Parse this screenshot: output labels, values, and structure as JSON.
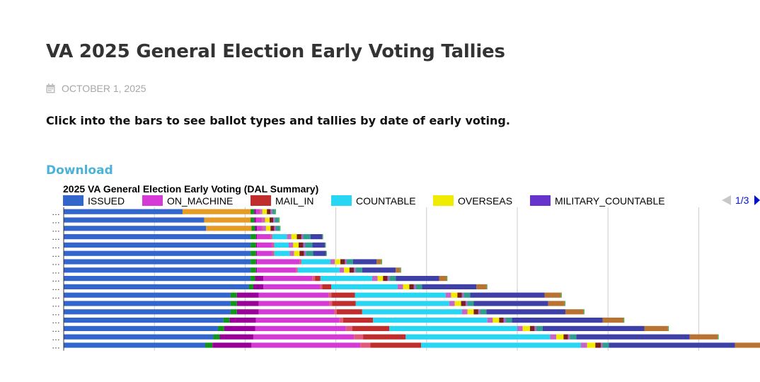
{
  "page": {
    "title": "VA 2025 General Election Early Voting Tallies",
    "date": "OCTOBER 1, 2025",
    "date_icon": "calendar-icon",
    "intro": "Click into the bars to see ballot types and tallies by date of early voting.",
    "download_label": "Download"
  },
  "pager": {
    "text": "1/3",
    "prev_icon": "triangle-left-icon",
    "next_icon": "triangle-right-icon"
  },
  "chart_data": {
    "type": "bar",
    "orientation": "horizontal",
    "stacked": true,
    "title": "2025 VA General Election Early Voting (DAL Summary)",
    "xlabel": "",
    "ylabel": "",
    "xlim": [
      0,
      3.9
    ],
    "x_gridlines": [
      0,
      0.5,
      1,
      1.5,
      2,
      2.5,
      3,
      3.5
    ],
    "grid": true,
    "legend_position": "top",
    "category_label": "…",
    "categories": [
      "…",
      "…",
      "…",
      "…",
      "…",
      "…",
      "…",
      "…",
      "…",
      "…",
      "…",
      "…",
      "…",
      "…",
      "…",
      "…",
      "…"
    ],
    "legend": [
      {
        "name": "ISSUED",
        "color": "#3366cc"
      },
      {
        "name": "ON_MACHINE",
        "color": "#d63ad6"
      },
      {
        "name": "MAIL_IN",
        "color": "#bf2d2d"
      },
      {
        "name": "COUNTABLE",
        "color": "#26d6f2"
      },
      {
        "name": "OVERSEAS",
        "color": "#f0ec00"
      },
      {
        "name": "MILITARY_COUNTABLE",
        "color": "#6633cc"
      }
    ],
    "series": [
      {
        "color": "#3366cc",
        "values": [
          0.655,
          0.775,
          0.785,
          1.03,
          1.03,
          1.03,
          1.03,
          1.03,
          1.03,
          1.02,
          0.92,
          0.92,
          0.92,
          0.88,
          0.85,
          0.825,
          0.78
        ]
      },
      {
        "color": "#e69b24",
        "values": [
          0.375,
          0.255,
          0.25,
          0,
          0,
          0,
          0,
          0,
          0,
          0,
          0,
          0,
          0,
          0,
          0,
          0,
          0
        ]
      },
      {
        "color": "#109618",
        "values": [
          0.02,
          0.02,
          0.02,
          0.03,
          0.03,
          0.03,
          0.03,
          0.03,
          0.025,
          0.025,
          0.035,
          0.035,
          0.035,
          0.035,
          0.035,
          0.035,
          0.04
        ]
      },
      {
        "color": "#990099",
        "values": [
          0.01,
          0.01,
          0.01,
          0.005,
          0.005,
          0.005,
          0.005,
          0.005,
          0.045,
          0.055,
          0.12,
          0.12,
          0.12,
          0.145,
          0.17,
          0.185,
          0.215
        ]
      },
      {
        "color": "#d63ad6",
        "values": [
          0.02,
          0.03,
          0.03,
          0.075,
          0.085,
          0.085,
          0.235,
          0.215,
          0.27,
          0.315,
          0.385,
          0.39,
          0.415,
          0.46,
          0.5,
          0.555,
          0.6
        ]
      },
      {
        "color": "#e05a7a",
        "values": [
          0.005,
          0.005,
          0.005,
          0.01,
          0.01,
          0.01,
          0.01,
          0.01,
          0.015,
          0.01,
          0.015,
          0.015,
          0.015,
          0.02,
          0.035,
          0.05,
          0.055
        ]
      },
      {
        "color": "#bf2d2d",
        "values": [
          0,
          0,
          0,
          0,
          0,
          0,
          0,
          0,
          0.03,
          0.05,
          0.13,
          0.13,
          0.14,
          0.165,
          0.205,
          0.235,
          0.28
        ]
      },
      {
        "color": "#26d6f2",
        "values": [
          0,
          0,
          0,
          0.08,
          0.08,
          0.085,
          0.16,
          0.23,
          0.285,
          0.365,
          0.5,
          0.515,
          0.55,
          0.63,
          0.705,
          0.795,
          0.88
        ]
      },
      {
        "color": "#c566c5",
        "values": [
          0.01,
          0.015,
          0.015,
          0.025,
          0.025,
          0.025,
          0.025,
          0.025,
          0.03,
          0.03,
          0.03,
          0.03,
          0.03,
          0.03,
          0.03,
          0.035,
          0.035
        ]
      },
      {
        "color": "#f0ec00",
        "values": [
          0.025,
          0.025,
          0.025,
          0.03,
          0.03,
          0.03,
          0.03,
          0.03,
          0.03,
          0.035,
          0.035,
          0.035,
          0.035,
          0.035,
          0.04,
          0.04,
          0.045
        ]
      },
      {
        "color": "#7a1f1f",
        "values": [
          0.02,
          0.02,
          0.02,
          0.025,
          0.025,
          0.025,
          0.025,
          0.025,
          0.025,
          0.025,
          0.025,
          0.025,
          0.025,
          0.025,
          0.025,
          0.025,
          0.03
        ]
      },
      {
        "color": "#aa66cc",
        "values": [
          0.01,
          0.01,
          0.01,
          0.01,
          0.01,
          0.01,
          0.01,
          0.01,
          0.01,
          0.01,
          0.01,
          0.01,
          0.01,
          0.01,
          0.01,
          0.01,
          0.01
        ]
      },
      {
        "color": "#2e9e8f",
        "values": [
          0.015,
          0.02,
          0.02,
          0.04,
          0.04,
          0.04,
          0.035,
          0.035,
          0.035,
          0.035,
          0.035,
          0.035,
          0.035,
          0.035,
          0.035,
          0.035,
          0.035
        ]
      },
      {
        "color": "#3f3fa8",
        "values": [
          0,
          0,
          0,
          0.065,
          0.07,
          0.07,
          0.13,
          0.185,
          0.24,
          0.3,
          0.41,
          0.41,
          0.435,
          0.5,
          0.56,
          0.625,
          0.695
        ]
      },
      {
        "color": "#b87333",
        "values": [
          0,
          0,
          0,
          0,
          0,
          0,
          0.025,
          0.025,
          0.04,
          0.055,
          0.09,
          0.09,
          0.1,
          0.115,
          0.13,
          0.155,
          0.175
        ]
      },
      {
        "color": "#4caf50",
        "values": [
          0.005,
          0.005,
          0.005,
          0.005,
          0.005,
          0.005,
          0.005,
          0.005,
          0.005,
          0.005,
          0.005,
          0.005,
          0.005,
          0.005,
          0.005,
          0.005,
          0.005
        ]
      }
    ]
  }
}
